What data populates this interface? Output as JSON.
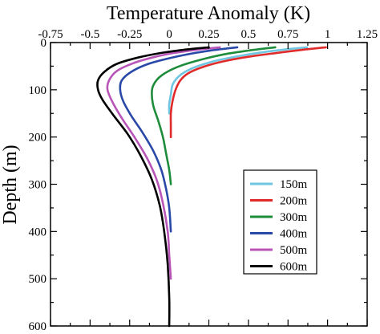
{
  "chart_data": {
    "type": "line",
    "xlabel": "Temperature Anomaly (K)",
    "ylabel": "Depth (m)",
    "xlim": [
      -0.75,
      1.25
    ],
    "ylim": [
      0,
      600
    ],
    "y_inverted": true,
    "x_axis_position": "top",
    "x_ticks": [
      -0.75,
      -0.5,
      -0.25,
      0,
      0.25,
      0.5,
      0.75,
      1,
      1.25
    ],
    "x_tick_labels": [
      "-0.75",
      "-0.5",
      "-0.25",
      "0",
      "0.25",
      "0.5",
      "0.75",
      "1",
      "1.25"
    ],
    "y_ticks": [
      0,
      100,
      200,
      300,
      400,
      500,
      600
    ],
    "y_tick_labels": [
      "0",
      "100",
      "200",
      "300",
      "400",
      "500",
      "600"
    ],
    "grid": false,
    "legend_position": "bottom-right",
    "series": [
      {
        "name": "150m",
        "color": "#6ec6e0",
        "points": [
          [
            0.87,
            10
          ],
          [
            0.75,
            14
          ],
          [
            0.6,
            20
          ],
          [
            0.45,
            28
          ],
          [
            0.3,
            38
          ],
          [
            0.18,
            50
          ],
          [
            0.1,
            62
          ],
          [
            0.05,
            75
          ],
          [
            0.02,
            90
          ],
          [
            0.01,
            110
          ],
          [
            0.0,
            130
          ],
          [
            0.0,
            150
          ]
        ]
      },
      {
        "name": "200m",
        "color": "#e02b2b",
        "points": [
          [
            0.99,
            10
          ],
          [
            0.85,
            15
          ],
          [
            0.68,
            22
          ],
          [
            0.5,
            30
          ],
          [
            0.34,
            40
          ],
          [
            0.21,
            52
          ],
          [
            0.12,
            65
          ],
          [
            0.07,
            80
          ],
          [
            0.04,
            100
          ],
          [
            0.02,
            125
          ],
          [
            0.01,
            150
          ],
          [
            0.01,
            175
          ],
          [
            0.01,
            200
          ]
        ]
      },
      {
        "name": "300m",
        "color": "#1f8c3c",
        "points": [
          [
            0.67,
            10
          ],
          [
            0.5,
            17
          ],
          [
            0.33,
            26
          ],
          [
            0.18,
            38
          ],
          [
            0.05,
            52
          ],
          [
            -0.05,
            70
          ],
          [
            -0.1,
            90
          ],
          [
            -0.11,
            110
          ],
          [
            -0.1,
            135
          ],
          [
            -0.07,
            165
          ],
          [
            -0.04,
            200
          ],
          [
            -0.02,
            235
          ],
          [
            0.0,
            270
          ],
          [
            0.01,
            300
          ]
        ]
      },
      {
        "name": "400m",
        "color": "#2a48a8",
        "points": [
          [
            0.43,
            10
          ],
          [
            0.28,
            16
          ],
          [
            0.13,
            24
          ],
          [
            -0.01,
            34
          ],
          [
            -0.14,
            46
          ],
          [
            -0.24,
            62
          ],
          [
            -0.3,
            80
          ],
          [
            -0.31,
            100
          ],
          [
            -0.29,
            125
          ],
          [
            -0.24,
            155
          ],
          [
            -0.17,
            190
          ],
          [
            -0.1,
            230
          ],
          [
            -0.05,
            270
          ],
          [
            -0.02,
            310
          ],
          [
            0.0,
            350
          ],
          [
            0.01,
            400
          ]
        ]
      },
      {
        "name": "500m",
        "color": "#b955b8",
        "points": [
          [
            0.32,
            10
          ],
          [
            0.18,
            15
          ],
          [
            0.03,
            22
          ],
          [
            -0.11,
            32
          ],
          [
            -0.23,
            44
          ],
          [
            -0.33,
            60
          ],
          [
            -0.38,
            80
          ],
          [
            -0.39,
            100
          ],
          [
            -0.36,
            125
          ],
          [
            -0.3,
            160
          ],
          [
            -0.22,
            200
          ],
          [
            -0.14,
            245
          ],
          [
            -0.08,
            290
          ],
          [
            -0.04,
            340
          ],
          [
            -0.01,
            400
          ],
          [
            0.0,
            450
          ],
          [
            0.01,
            500
          ]
        ]
      },
      {
        "name": "600m",
        "color": "#000000",
        "points": [
          [
            0.25,
            10
          ],
          [
            0.1,
            15
          ],
          [
            -0.05,
            22
          ],
          [
            -0.2,
            32
          ],
          [
            -0.33,
            45
          ],
          [
            -0.41,
            62
          ],
          [
            -0.45,
            80
          ],
          [
            -0.45,
            100
          ],
          [
            -0.42,
            122
          ],
          [
            -0.35,
            155
          ],
          [
            -0.26,
            195
          ],
          [
            -0.18,
            240
          ],
          [
            -0.11,
            290
          ],
          [
            -0.06,
            345
          ],
          [
            -0.03,
            405
          ],
          [
            -0.01,
            470
          ],
          [
            0.0,
            540
          ],
          [
            0.0,
            600
          ]
        ]
      }
    ]
  }
}
